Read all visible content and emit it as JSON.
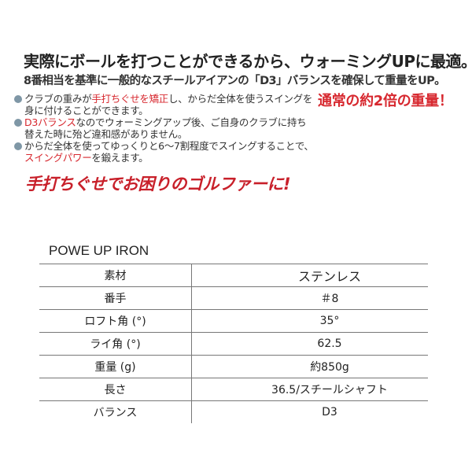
{
  "headline": "実際にボールを打つことができるから、ウォーミングUPに最適。",
  "subline": "8番相当を基準に一般的なスチールアイアンの「D3」バランスを確保して重量をUP。",
  "emphasis": "通常の約2倍の重量！",
  "bullets": [
    {
      "pre": "クラブの重みが",
      "red": "手打ちぐせを矯正",
      "post": "し、からだ全体を使うスイングを",
      "line2_red": "",
      "line2": "身に付けることができます。"
    },
    {
      "pre": "",
      "red": "D3バランス",
      "post": "なのでウォーミングアップ後、ご自身のクラブに持ち",
      "line2_red": "",
      "line2": "替えた時に殆ど違和感がありません。"
    },
    {
      "pre": "からだ全体を使ってゆっくりと6〜7割程度でスイングすることで、",
      "red": "",
      "post": "",
      "line2_red": "スイングパワー",
      "line2": "を鍛えます。"
    }
  ],
  "bullet_color": "#7f97a6",
  "accent_red": "#d7282f",
  "slogan": "手打ちぐせでお困りのゴルファーに!",
  "table": {
    "title": "POWE UP IRON",
    "rows": [
      {
        "label": "素材",
        "value": "ステンレス"
      },
      {
        "label": "番手",
        "value": "＃8"
      },
      {
        "label": "ロフト角 (°)",
        "value": "35°"
      },
      {
        "label": "ライ角 (°)",
        "value": "62.5"
      },
      {
        "label": "重量 (g)",
        "value": "約850g"
      },
      {
        "label": "長さ",
        "value": "36.5/スチールシャフト"
      },
      {
        "label": "バランス",
        "value": "D3"
      }
    ]
  }
}
